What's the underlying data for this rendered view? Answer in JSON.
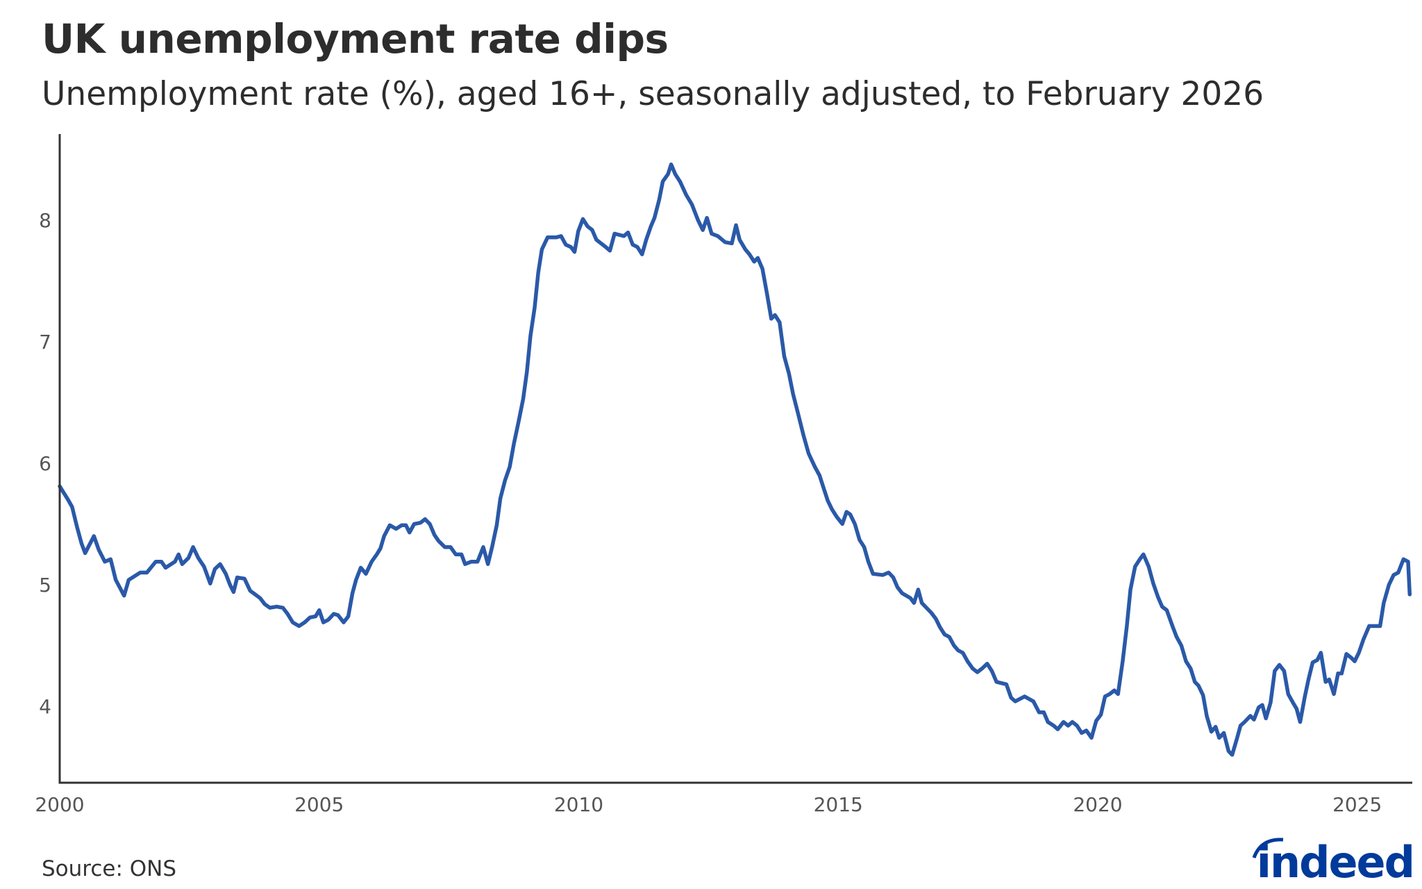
{
  "chart_data": {
    "type": "line",
    "title": "UK unemployment rate dips",
    "subtitle": "Unemployment rate (%), aged 16+, seasonally adjusted, to February 2026",
    "xlabel": "",
    "ylabel": "",
    "xlim": [
      2000,
      2026.02
    ],
    "ylim": [
      3.37,
      8.71
    ],
    "xticks": [
      2000,
      2005,
      2010,
      2015,
      2020,
      2025
    ],
    "yticks": [
      4,
      5,
      6,
      7,
      8
    ],
    "grid": false,
    "line_color": "#2a59a8",
    "x": [
      2000.0,
      2000.16,
      2000.24,
      2000.33,
      2000.42,
      2000.49,
      2000.66,
      2000.75,
      2000.87,
      2000.98,
      2001.08,
      2001.24,
      2001.33,
      2001.55,
      2001.68,
      2001.85,
      2001.96,
      2002.04,
      2002.22,
      2002.29,
      2002.36,
      2002.48,
      2002.57,
      2002.67,
      2002.78,
      2002.9,
      2002.99,
      2003.09,
      2003.2,
      2003.28,
      2003.35,
      2003.42,
      2003.56,
      2003.67,
      2003.86,
      2003.95,
      2004.05,
      2004.18,
      2004.3,
      2004.39,
      2004.49,
      2004.61,
      2004.72,
      2004.82,
      2004.93,
      2005.0,
      2005.08,
      2005.17,
      2005.28,
      2005.36,
      2005.47,
      2005.56,
      2005.64,
      2005.71,
      2005.8,
      2005.9,
      2006.01,
      2006.11,
      2006.18,
      2006.25,
      2006.36,
      2006.48,
      2006.59,
      2006.67,
      2006.74,
      2006.83,
      2006.95,
      2007.04,
      2007.13,
      2007.22,
      2007.3,
      2007.42,
      2007.53,
      2007.63,
      2007.74,
      2007.81,
      2007.93,
      2008.05,
      2008.16,
      2008.25,
      2008.33,
      2008.42,
      2008.49,
      2008.58,
      2008.67,
      2008.75,
      2008.84,
      2008.93,
      2009.0,
      2009.07,
      2009.15,
      2009.22,
      2009.29,
      2009.4,
      2009.57,
      2009.66,
      2009.75,
      2009.85,
      2009.92,
      2009.99,
      2010.08,
      2010.17,
      2010.26,
      2010.34,
      2010.52,
      2010.6,
      2010.69,
      2010.87,
      2010.95,
      2011.04,
      2011.13,
      2011.22,
      2011.3,
      2011.39,
      2011.46,
      2011.55,
      2011.62,
      2011.72,
      2011.78,
      2011.86,
      2011.95,
      2012.07,
      2012.18,
      2012.3,
      2012.39,
      2012.47,
      2012.56,
      2012.68,
      2012.82,
      2012.95,
      2013.03,
      2013.1,
      2013.21,
      2013.29,
      2013.38,
      2013.45,
      2013.54,
      2013.63,
      2013.71,
      2013.78,
      2013.87,
      2013.96,
      2014.05,
      2014.13,
      2014.22,
      2014.33,
      2014.43,
      2014.55,
      2014.64,
      2014.73,
      2014.8,
      2014.88,
      2014.97,
      2015.08,
      2015.16,
      2015.23,
      2015.32,
      2015.41,
      2015.5,
      2015.58,
      2015.67,
      2015.86,
      2015.97,
      2016.06,
      2016.14,
      2016.23,
      2016.39,
      2016.46,
      2016.54,
      2016.61,
      2016.7,
      2016.79,
      2016.88,
      2016.96,
      2017.05,
      2017.14,
      2017.23,
      2017.31,
      2017.4,
      2017.49,
      2017.59,
      2017.68,
      2017.77,
      2017.87,
      2017.96,
      2018.05,
      2018.24,
      2018.33,
      2018.41,
      2018.59,
      2018.76,
      2018.87,
      2018.96,
      2019.04,
      2019.15,
      2019.23,
      2019.34,
      2019.43,
      2019.51,
      2019.6,
      2019.69,
      2019.78,
      2019.88,
      2019.97,
      2020.06,
      2020.14,
      2020.23,
      2020.32,
      2020.39,
      2020.48,
      2020.56,
      2020.63,
      2020.72,
      2020.81,
      2020.88,
      2020.98,
      2021.07,
      2021.16,
      2021.24,
      2021.33,
      2021.44,
      2021.52,
      2021.61,
      2021.7,
      2021.79,
      2021.87,
      2021.94,
      2022.03,
      2022.1,
      2022.19,
      2022.27,
      2022.34,
      2022.43,
      2022.52,
      2022.59,
      2022.68,
      2022.75,
      2022.83,
      2022.94,
      2023.01,
      2023.1,
      2023.17,
      2023.24,
      2023.33,
      2023.41,
      2023.5,
      2023.59,
      2023.67,
      2023.76,
      2023.83,
      2023.9,
      2023.99,
      2024.06,
      2024.14,
      2024.23,
      2024.3,
      2024.39,
      2024.46,
      2024.55,
      2024.63,
      2024.7,
      2024.79,
      2024.88,
      2024.95,
      2025.03,
      2025.12,
      2025.23,
      2025.33,
      2025.44,
      2025.51,
      2025.61,
      2025.7,
      2025.79,
      2025.89,
      2025.98,
      2026.01
    ],
    "values": [
      5.81,
      5.7,
      5.64,
      5.48,
      5.34,
      5.26,
      5.4,
      5.29,
      5.19,
      5.21,
      5.04,
      4.91,
      5.04,
      5.1,
      5.1,
      5.19,
      5.19,
      5.14,
      5.19,
      5.25,
      5.17,
      5.22,
      5.31,
      5.22,
      5.15,
      5.01,
      5.13,
      5.17,
      5.09,
      5.0,
      4.94,
      5.06,
      5.05,
      4.95,
      4.89,
      4.84,
      4.81,
      4.82,
      4.81,
      4.76,
      4.69,
      4.66,
      4.69,
      4.73,
      4.74,
      4.79,
      4.69,
      4.71,
      4.76,
      4.75,
      4.69,
      4.74,
      4.93,
      5.04,
      5.14,
      5.09,
      5.19,
      5.25,
      5.3,
      5.4,
      5.49,
      5.46,
      5.49,
      5.49,
      5.43,
      5.5,
      5.51,
      5.54,
      5.5,
      5.41,
      5.36,
      5.31,
      5.31,
      5.25,
      5.25,
      5.17,
      5.19,
      5.19,
      5.31,
      5.17,
      5.31,
      5.49,
      5.71,
      5.86,
      5.97,
      6.16,
      6.34,
      6.53,
      6.75,
      7.05,
      7.28,
      7.57,
      7.76,
      7.86,
      7.86,
      7.87,
      7.8,
      7.78,
      7.74,
      7.91,
      8.01,
      7.95,
      7.92,
      7.84,
      7.78,
      7.75,
      7.89,
      7.87,
      7.9,
      7.8,
      7.78,
      7.72,
      7.84,
      7.95,
      8.02,
      8.17,
      8.32,
      8.38,
      8.46,
      8.38,
      8.32,
      8.21,
      8.13,
      8.0,
      7.92,
      8.02,
      7.89,
      7.87,
      7.82,
      7.81,
      7.96,
      7.84,
      7.76,
      7.72,
      7.66,
      7.69,
      7.6,
      7.39,
      7.19,
      7.22,
      7.16,
      6.88,
      6.74,
      6.57,
      6.42,
      6.23,
      6.08,
      5.97,
      5.9,
      5.78,
      5.69,
      5.62,
      5.56,
      5.5,
      5.6,
      5.58,
      5.5,
      5.37,
      5.31,
      5.19,
      5.09,
      5.08,
      5.1,
      5.06,
      4.98,
      4.93,
      4.89,
      4.85,
      4.96,
      4.85,
      4.81,
      4.77,
      4.72,
      4.65,
      4.59,
      4.57,
      4.5,
      4.46,
      4.44,
      4.37,
      4.31,
      4.28,
      4.31,
      4.35,
      4.29,
      4.2,
      4.18,
      4.07,
      4.04,
      4.08,
      4.04,
      3.95,
      3.95,
      3.87,
      3.84,
      3.81,
      3.87,
      3.84,
      3.87,
      3.84,
      3.78,
      3.8,
      3.74,
      3.88,
      3.93,
      4.08,
      4.1,
      4.13,
      4.1,
      4.37,
      4.66,
      4.96,
      5.15,
      5.21,
      5.25,
      5.15,
      5.01,
      4.9,
      4.82,
      4.79,
      4.66,
      4.57,
      4.5,
      4.37,
      4.31,
      4.2,
      4.17,
      4.09,
      3.92,
      3.79,
      3.83,
      3.74,
      3.78,
      3.63,
      3.6,
      3.73,
      3.84,
      3.87,
      3.92,
      3.89,
      3.99,
      4.01,
      3.9,
      4.03,
      4.29,
      4.34,
      4.29,
      4.1,
      4.03,
      3.98,
      3.87,
      4.08,
      4.22,
      4.36,
      4.38,
      4.44,
      4.2,
      4.22,
      4.1,
      4.27,
      4.27,
      4.43,
      4.4,
      4.37,
      4.44,
      4.55,
      4.66,
      4.66,
      4.66,
      4.85,
      5.0,
      5.08,
      5.1,
      5.21,
      5.19,
      4.92
    ]
  },
  "footer": {
    "source": "Source: ONS",
    "logo_text": "indeed"
  }
}
